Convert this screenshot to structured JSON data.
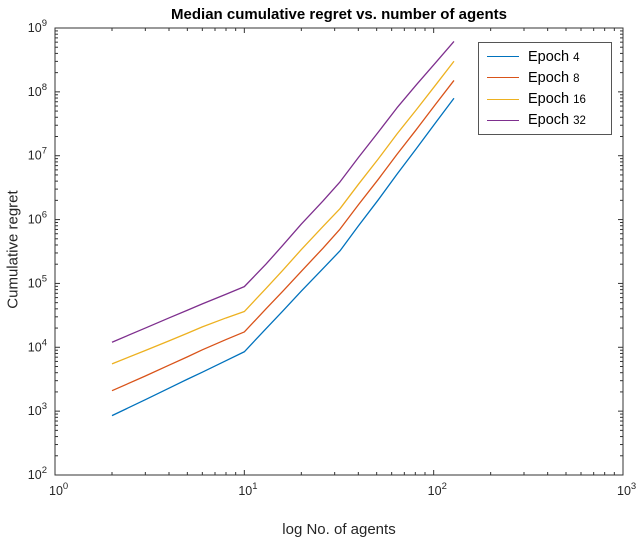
{
  "figure": {
    "title": "Median cumulative regret vs. number of agents",
    "xlabel": "log No. of agents",
    "ylabel": "Cumulative regret"
  },
  "legend": {
    "position": "upper right",
    "items": [
      {
        "prefix": "Epoch",
        "value": "4"
      },
      {
        "prefix": "Epoch",
        "value": "8"
      },
      {
        "prefix": "Epoch",
        "value": "16"
      },
      {
        "prefix": "Epoch",
        "value": "32"
      }
    ]
  },
  "colors": {
    "axis": "#333333",
    "tick_text": "#262626",
    "background": "#ffffff",
    "legend_border": "#555555"
  },
  "chart_data": {
    "type": "line",
    "title": "Median cumulative regret vs. number of agents",
    "xlabel": "log No. of agents",
    "ylabel": "Cumulative regret",
    "x_scale": "log",
    "y_scale": "log",
    "xlim": [
      1,
      1000
    ],
    "ylim": [
      100,
      1000000000
    ],
    "grid": false,
    "legend_position": "upper right",
    "tick_base": "10",
    "x_tick_exponents": [
      0,
      1,
      2,
      3
    ],
    "y_tick_exponents": [
      2,
      3,
      4,
      5,
      6,
      7,
      8,
      9
    ],
    "x": [
      2,
      3,
      4,
      5,
      6,
      8,
      10,
      13,
      16,
      20,
      26,
      32,
      40,
      51,
      64,
      81,
      102,
      128
    ],
    "series": [
      {
        "name": "Epoch 4",
        "color": "#0072BD",
        "values": [
          851,
          1510,
          2290,
          3160,
          4070,
          6170,
          8510,
          19500,
          37200,
          75900,
          170000,
          324000,
          794000,
          2040000,
          5130000,
          12900000,
          32400000,
          79400000
        ]
      },
      {
        "name": "Epoch 8",
        "color": "#D95319",
        "values": [
          2090,
          3550,
          5250,
          7080,
          9120,
          13200,
          17400,
          39800,
          75900,
          155000,
          355000,
          708000,
          1700000,
          4270000,
          10500000,
          25700000,
          63100000,
          151000000
        ]
      },
      {
        "name": "Epoch 16",
        "color": "#EDB120",
        "values": [
          5500,
          8910,
          12600,
          16600,
          20900,
          28800,
          36300,
          83200,
          162000,
          339000,
          776000,
          1480000,
          3550000,
          8910000,
          21900000,
          52500000,
          126000000,
          302000000
        ]
      },
      {
        "name": "Epoch 32",
        "color": "#7E2F8E",
        "values": [
          12000,
          20000,
          28800,
          38000,
          47900,
          67600,
          89100,
          200000,
          398000,
          851000,
          1950000,
          3890000,
          9330000,
          23400000,
          56200000,
          129000000,
          282000000,
          617000000
        ]
      }
    ]
  }
}
